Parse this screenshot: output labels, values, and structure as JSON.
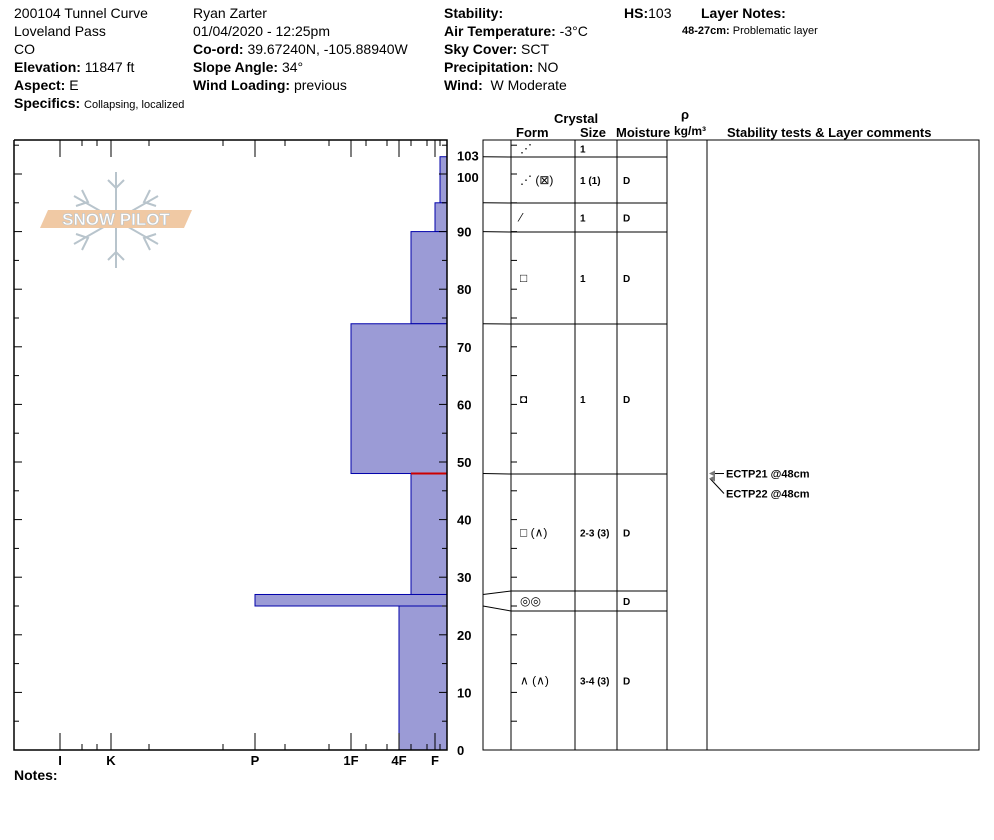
{
  "header": {
    "site": "200104 Tunnel Curve",
    "area": "Loveland Pass",
    "state": "CO",
    "elevation_label": "Elevation:",
    "elevation": "11847 ft",
    "aspect_label": "Aspect:",
    "aspect": "E",
    "specifics_label": "Specifics:",
    "specifics": "Collapsing, localized",
    "observer": "Ryan Zarter",
    "datetime": "01/04/2020 - 12:25pm",
    "coord_label": "Co-ord:",
    "coord": "39.67240N, -105.88940W",
    "slope_label": "Slope Angle:",
    "slope": "34°",
    "wind_loading_label": "Wind Loading:",
    "wind_loading": "previous",
    "stability_label": "Stability:",
    "stability": "",
    "air_temp_label": "Air Temperature:",
    "air_temp": "-3°C",
    "sky_label": "Sky Cover:",
    "sky": "SCT",
    "precip_label": "Precipitation:",
    "precip": "NO",
    "wind_label": "Wind:",
    "wind": "W Moderate",
    "hs_label": "HS:",
    "hs": "103",
    "layer_notes_label": "Layer Notes:",
    "layer_notes": [
      {
        "range": "48-27cm:",
        "text": "Problematic layer"
      }
    ]
  },
  "logo": {
    "text": "SNOW PILOT",
    "accent": "#f0c9a4",
    "flake": "#b8c4cc"
  },
  "table_headers": {
    "crystal": "Crystal",
    "form": "Form",
    "size": "Size",
    "moisture": "Moisture",
    "rho": "ρ",
    "density_unit": "kg/m³",
    "comments": "Stability tests & Layer comments"
  },
  "table_rows": [
    {
      "form": "⋰",
      "size": "1",
      "moisture": ""
    },
    {
      "form": "⋰ (⊠)",
      "size": "1 (1)",
      "moisture": "D"
    },
    {
      "form": "⁄",
      "size": "1",
      "moisture": "D"
    },
    {
      "form": "□",
      "size": "1",
      "moisture": "D"
    },
    {
      "form": "◘",
      "size": "1",
      "moisture": "D"
    },
    {
      "form": "□ (∧)",
      "size": "2-3 (3)",
      "moisture": "D"
    },
    {
      "form": "◎◎",
      "size": "",
      "moisture": "D"
    },
    {
      "form": "∧ (∧)",
      "size": "3-4 (3)",
      "moisture": "D"
    }
  ],
  "stability_tests": [
    {
      "text": "ECTP21 @48cm",
      "depth": 48
    },
    {
      "text": "ECTP22 @48cm",
      "depth": 48
    }
  ],
  "notes_label": "Notes:",
  "chart_data": {
    "type": "bar",
    "title": "",
    "xlabel": "",
    "ylabel": "",
    "ylim": [
      0,
      103
    ],
    "x_tick_labels": [
      "I",
      "K",
      "P",
      "1F",
      "4F",
      "F"
    ],
    "y_tick_labels": [
      "0",
      "10",
      "20",
      "30",
      "40",
      "50",
      "60",
      "70",
      "80",
      "90",
      "100",
      "103"
    ],
    "fill_color": "#9b9bd6",
    "edge_color": "#0000aa",
    "weak_layer_color": "#cc0000",
    "weak_layer_depth": 48,
    "layers": [
      {
        "top": 103,
        "bottom": 95,
        "hardness": "F-"
      },
      {
        "top": 95,
        "bottom": 90,
        "hardness": "F"
      },
      {
        "top": 90,
        "bottom": 74,
        "hardness": "4F-"
      },
      {
        "top": 74,
        "bottom": 48,
        "hardness": "1F"
      },
      {
        "top": 48,
        "bottom": 27,
        "hardness": "4F-"
      },
      {
        "top": 27,
        "bottom": 25,
        "hardness": "P"
      },
      {
        "top": 25,
        "bottom": 0,
        "hardness": "4F"
      }
    ]
  }
}
